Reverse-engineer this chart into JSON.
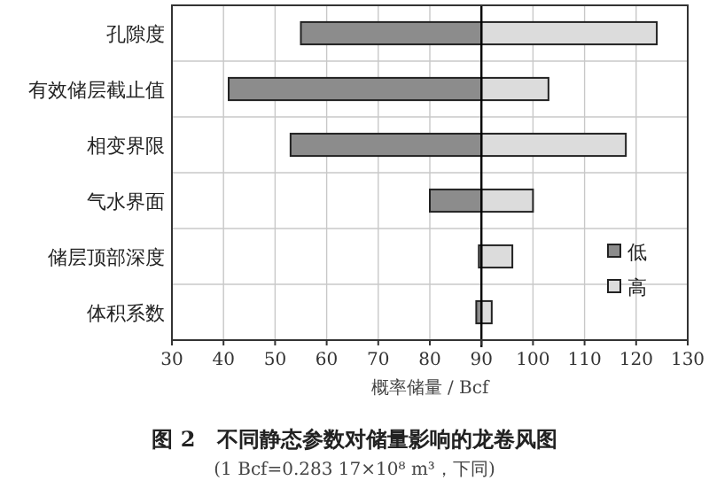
{
  "chart_data": {
    "type": "bar",
    "orientation": "horizontal",
    "title": "图 2　不同静态参数对储量影响的龙卷风图",
    "xlabel": "概率储量 / Bcf",
    "annotations": [
      "(1 Bcf=0.283 17×10⁸ m³，下同)"
    ],
    "categories": [
      "孔隙度",
      "有效储层截止值",
      "相变界限",
      "气水界面",
      "储层顶部深度",
      "体积系数"
    ],
    "series": [
      {
        "name": "低",
        "color": "#8c8c8c",
        "base": [
          55,
          41,
          53,
          80,
          89.5,
          89
        ],
        "values": [
          35,
          49,
          37,
          10,
          0.5,
          1
        ]
      },
      {
        "name": "高",
        "color": "#dcdcdc",
        "base": [
          90,
          90,
          90,
          90,
          90,
          90
        ],
        "values": [
          34,
          13,
          28,
          10,
          6,
          2
        ]
      }
    ],
    "xlim": [
      30,
      130
    ],
    "xticks": [
      30,
      40,
      50,
      60,
      70,
      80,
      90,
      100,
      110,
      120,
      130
    ],
    "ref_lines": [
      {
        "axis": "x",
        "value": 90,
        "color": "#000000"
      }
    ],
    "grid": true,
    "legend": "bottom right"
  }
}
